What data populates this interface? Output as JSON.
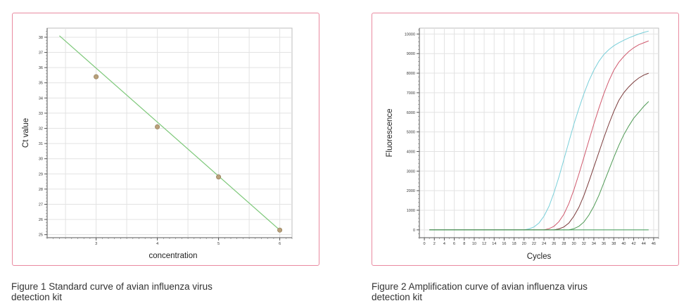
{
  "colors": {
    "card_border": "#e98aa0",
    "grid": "#e3e3e3"
  },
  "captions": {
    "fig1": "Figure 1 Standard curve of avian influenza virus detection kit",
    "fig2": "Figure 2 Amplification curve of avian influenza virus detection kit"
  },
  "chart_data": [
    {
      "type": "scatter",
      "title": "",
      "xlabel": "concentration",
      "ylabel": "Ct value",
      "xlim": [
        2.2,
        6.2
      ],
      "ylim": [
        24.8,
        38.6
      ],
      "x_ticks": [
        "3",
        "4",
        "5",
        "6"
      ],
      "y_ticks": [
        "25",
        "26",
        "27",
        "28",
        "29",
        "30",
        "31",
        "32",
        "33",
        "34",
        "35",
        "36",
        "37",
        "38"
      ],
      "points": [
        {
          "x": 3,
          "y": 35.4
        },
        {
          "x": 4,
          "y": 32.1
        },
        {
          "x": 5,
          "y": 28.8
        },
        {
          "x": 6,
          "y": 25.3
        }
      ],
      "fit_line": {
        "x": [
          2.4,
          6
        ],
        "y": [
          38.1,
          25.3
        ],
        "color": "#7ec87a"
      },
      "point_color": "#b8a07a",
      "grid": true
    },
    {
      "type": "line",
      "title": "",
      "xlabel": "Cycles",
      "ylabel": "Fluorescence",
      "xlim": [
        -1,
        47
      ],
      "ylim": [
        -400,
        10300
      ],
      "x_ticks": [
        "0",
        "2",
        "4",
        "6",
        "8",
        "10",
        "12",
        "14",
        "16",
        "18",
        "20",
        "22",
        "24",
        "26",
        "28",
        "30",
        "32",
        "34",
        "36",
        "38",
        "40",
        "42",
        "44",
        "46"
      ],
      "y_ticks": [
        "0",
        "1000",
        "2000",
        "3000",
        "4000",
        "5000",
        "6000",
        "7000",
        "8000",
        "9000",
        "10000"
      ],
      "grid": true,
      "series": [
        {
          "color": "#79cfd9",
          "x": [
            1,
            20,
            21,
            22,
            23,
            24,
            25,
            26,
            27,
            28,
            29,
            30,
            31,
            32,
            33,
            34,
            35,
            36,
            37,
            38,
            39,
            40,
            41,
            42,
            43,
            44,
            45
          ],
          "y": [
            0,
            0,
            50,
            150,
            350,
            700,
            1200,
            1900,
            2700,
            3600,
            4500,
            5400,
            6200,
            6950,
            7600,
            8150,
            8600,
            8950,
            9200,
            9400,
            9550,
            9680,
            9800,
            9900,
            10000,
            10080,
            10150
          ]
        },
        {
          "color": "#d05a6e",
          "x": [
            1,
            24,
            25,
            26,
            27,
            28,
            29,
            30,
            31,
            32,
            33,
            34,
            35,
            36,
            37,
            38,
            39,
            40,
            41,
            42,
            43,
            44,
            45
          ],
          "y": [
            0,
            0,
            60,
            180,
            420,
            800,
            1350,
            2050,
            2850,
            3700,
            4550,
            5400,
            6200,
            6950,
            7600,
            8150,
            8550,
            8850,
            9100,
            9300,
            9450,
            9550,
            9650
          ]
        },
        {
          "color": "#7a3a3a",
          "x": [
            1,
            26,
            27,
            28,
            29,
            30,
            31,
            32,
            33,
            34,
            35,
            36,
            37,
            38,
            39,
            40,
            41,
            42,
            43,
            44,
            45
          ],
          "y": [
            0,
            0,
            50,
            150,
            350,
            700,
            1150,
            1750,
            2450,
            3200,
            3950,
            4700,
            5400,
            6050,
            6600,
            7000,
            7300,
            7550,
            7750,
            7900,
            8000
          ]
        },
        {
          "color": "#4f9a55",
          "x": [
            1,
            29,
            30,
            31,
            32,
            33,
            34,
            35,
            36,
            37,
            38,
            39,
            40,
            41,
            42,
            43,
            44,
            45
          ],
          "y": [
            0,
            0,
            60,
            180,
            400,
            750,
            1200,
            1750,
            2400,
            3050,
            3700,
            4300,
            4850,
            5300,
            5700,
            6000,
            6300,
            6550
          ]
        },
        {
          "color": "#3f9a55",
          "x": [
            1,
            45
          ],
          "y": [
            0,
            0
          ]
        }
      ]
    }
  ]
}
